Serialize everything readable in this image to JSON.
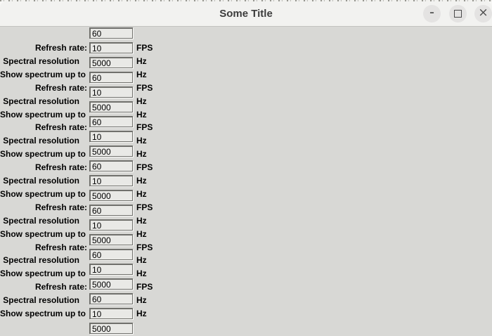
{
  "window": {
    "title": "Some Title",
    "controls": [
      {
        "name": "minimize",
        "glyph": "–"
      },
      {
        "name": "maximize",
        "glyph": ""
      },
      {
        "name": "close",
        "glyph": "×"
      }
    ]
  },
  "form": {
    "rows": [
      {
        "label": "Refresh rate:",
        "value": "60",
        "unit": "FPS"
      },
      {
        "label": "Spectral resolution",
        "value": "10",
        "unit": "Hz"
      },
      {
        "label": "Show spectrum up to",
        "value": "5000",
        "unit": "Hz"
      },
      {
        "label": "Refresh rate:",
        "value": "60",
        "unit": "FPS"
      },
      {
        "label": "Spectral resolution",
        "value": "10",
        "unit": "Hz"
      },
      {
        "label": "Show spectrum up to",
        "value": "5000",
        "unit": "Hz"
      },
      {
        "label": "Refresh rate:",
        "value": "60",
        "unit": "FPS"
      },
      {
        "label": "Spectral resolution",
        "value": "10",
        "unit": "Hz"
      },
      {
        "label": "Show spectrum up to",
        "value": "5000",
        "unit": "Hz"
      },
      {
        "label": "Refresh rate:",
        "value": "60",
        "unit": "FPS"
      },
      {
        "label": "Spectral resolution",
        "value": "10",
        "unit": "Hz"
      },
      {
        "label": "Show spectrum up to",
        "value": "5000",
        "unit": "Hz"
      },
      {
        "label": "Refresh rate:",
        "value": "60",
        "unit": "FPS"
      },
      {
        "label": "Spectral resolution",
        "value": "10",
        "unit": "Hz"
      },
      {
        "label": "Show spectrum up to",
        "value": "5000",
        "unit": "Hz"
      },
      {
        "label": "Refresh rate:",
        "value": "60",
        "unit": "FPS"
      },
      {
        "label": "Spectral resolution",
        "value": "10",
        "unit": "Hz"
      },
      {
        "label": "Show spectrum up to",
        "value": "5000",
        "unit": "Hz"
      },
      {
        "label": "Refresh rate:",
        "value": "60",
        "unit": "FPS"
      },
      {
        "label": "Spectral resolution",
        "value": "10",
        "unit": "Hz"
      },
      {
        "label": "Show spectrum up to",
        "value": "5000",
        "unit": "Hz"
      }
    ]
  },
  "colors": {
    "titlebar_bg": "#f2f2f0",
    "content_bg": "#d8d8d5",
    "input_bg": "#e9e9e6",
    "input_border": "#70706c",
    "title_text": "#3c3c3c"
  }
}
